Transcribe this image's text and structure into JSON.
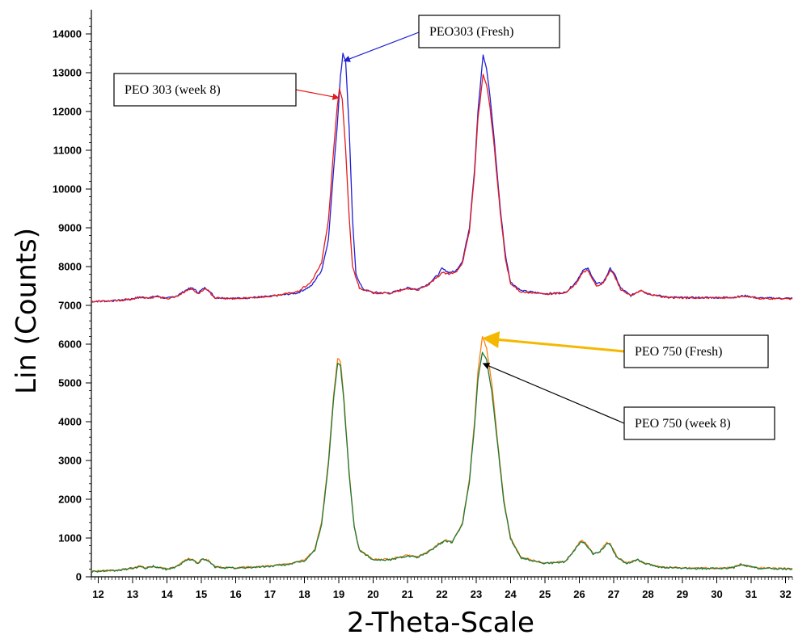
{
  "chart_data": {
    "type": "line",
    "xlabel": "2-Theta-Scale",
    "ylabel": "Lin (Counts)",
    "xlim": [
      11.8,
      32.2
    ],
    "ylim": [
      0,
      14500
    ],
    "xticks": [
      12,
      13,
      14,
      15,
      16,
      17,
      18,
      19,
      20,
      21,
      22,
      23,
      24,
      25,
      26,
      27,
      28,
      29,
      30,
      31,
      32
    ],
    "yticks": [
      0,
      1000,
      2000,
      3000,
      4000,
      5000,
      6000,
      7000,
      8000,
      9000,
      10000,
      11000,
      12000,
      13000,
      14000
    ],
    "grid": false,
    "legend": "none",
    "series": [
      {
        "name": "PEO303 (Fresh)",
        "color": "#1f1fd6",
        "baseline": 7100,
        "points": [
          [
            11.8,
            7100
          ],
          [
            12.5,
            7120
          ],
          [
            13,
            7170
          ],
          [
            13.2,
            7210
          ],
          [
            13.5,
            7200
          ],
          [
            13.7,
            7240
          ],
          [
            14,
            7180
          ],
          [
            14.3,
            7250
          ],
          [
            14.6,
            7420
          ],
          [
            14.75,
            7450
          ],
          [
            14.9,
            7330
          ],
          [
            15.1,
            7450
          ],
          [
            15.2,
            7400
          ],
          [
            15.4,
            7200
          ],
          [
            16,
            7180
          ],
          [
            17,
            7230
          ],
          [
            17.8,
            7320
          ],
          [
            18.2,
            7500
          ],
          [
            18.5,
            7900
          ],
          [
            18.7,
            8700
          ],
          [
            18.85,
            10500
          ],
          [
            18.95,
            11600
          ],
          [
            19.05,
            12900
          ],
          [
            19.12,
            13500
          ],
          [
            19.2,
            13300
          ],
          [
            19.3,
            11600
          ],
          [
            19.4,
            9200
          ],
          [
            19.5,
            7800
          ],
          [
            19.7,
            7420
          ],
          [
            20,
            7330
          ],
          [
            20.5,
            7320
          ],
          [
            21,
            7450
          ],
          [
            21.3,
            7420
          ],
          [
            21.6,
            7550
          ],
          [
            21.9,
            7800
          ],
          [
            22,
            7950
          ],
          [
            22.2,
            7850
          ],
          [
            22.4,
            7880
          ],
          [
            22.6,
            8150
          ],
          [
            22.8,
            9000
          ],
          [
            22.95,
            10500
          ],
          [
            23.05,
            12000
          ],
          [
            23.2,
            13450
          ],
          [
            23.3,
            13100
          ],
          [
            23.4,
            12400
          ],
          [
            23.5,
            11500
          ],
          [
            23.7,
            9500
          ],
          [
            23.85,
            8300
          ],
          [
            24,
            7600
          ],
          [
            24.3,
            7380
          ],
          [
            25,
            7300
          ],
          [
            25.6,
            7330
          ],
          [
            25.9,
            7600
          ],
          [
            26.1,
            7900
          ],
          [
            26.25,
            7950
          ],
          [
            26.5,
            7550
          ],
          [
            26.7,
            7600
          ],
          [
            26.9,
            7950
          ],
          [
            27.0,
            7850
          ],
          [
            27.2,
            7450
          ],
          [
            27.5,
            7250
          ],
          [
            27.8,
            7400
          ],
          [
            28,
            7300
          ],
          [
            28.5,
            7220
          ],
          [
            29,
            7200
          ],
          [
            30,
            7200
          ],
          [
            30.5,
            7210
          ],
          [
            30.8,
            7250
          ],
          [
            31.2,
            7190
          ],
          [
            32.2,
            7180
          ]
        ]
      },
      {
        "name": "PEO 303 (week 8)",
        "color": "#e41a1c",
        "baseline": 7100,
        "points": [
          [
            11.8,
            7100
          ],
          [
            12.5,
            7120
          ],
          [
            13,
            7160
          ],
          [
            13.2,
            7200
          ],
          [
            13.5,
            7190
          ],
          [
            13.7,
            7230
          ],
          [
            14,
            7170
          ],
          [
            14.3,
            7240
          ],
          [
            14.6,
            7400
          ],
          [
            14.75,
            7420
          ],
          [
            14.9,
            7300
          ],
          [
            15.1,
            7420
          ],
          [
            15.2,
            7380
          ],
          [
            15.4,
            7190
          ],
          [
            16,
            7170
          ],
          [
            17,
            7230
          ],
          [
            17.8,
            7350
          ],
          [
            18.2,
            7600
          ],
          [
            18.5,
            8100
          ],
          [
            18.7,
            9200
          ],
          [
            18.85,
            11000
          ],
          [
            18.95,
            12100
          ],
          [
            19.02,
            12600
          ],
          [
            19.1,
            12300
          ],
          [
            19.2,
            11000
          ],
          [
            19.3,
            9300
          ],
          [
            19.4,
            8000
          ],
          [
            19.6,
            7450
          ],
          [
            20,
            7320
          ],
          [
            20.5,
            7310
          ],
          [
            21,
            7430
          ],
          [
            21.3,
            7400
          ],
          [
            21.6,
            7520
          ],
          [
            21.9,
            7750
          ],
          [
            22,
            7850
          ],
          [
            22.2,
            7800
          ],
          [
            22.4,
            7850
          ],
          [
            22.6,
            8100
          ],
          [
            22.8,
            8900
          ],
          [
            22.95,
            10400
          ],
          [
            23.05,
            11800
          ],
          [
            23.2,
            12950
          ],
          [
            23.3,
            12700
          ],
          [
            23.4,
            12100
          ],
          [
            23.5,
            11300
          ],
          [
            23.7,
            9400
          ],
          [
            23.85,
            8200
          ],
          [
            24,
            7550
          ],
          [
            24.3,
            7350
          ],
          [
            25,
            7290
          ],
          [
            25.6,
            7320
          ],
          [
            25.9,
            7550
          ],
          [
            26.1,
            7850
          ],
          [
            26.25,
            7900
          ],
          [
            26.5,
            7500
          ],
          [
            26.7,
            7570
          ],
          [
            26.9,
            7900
          ],
          [
            27.0,
            7800
          ],
          [
            27.2,
            7420
          ],
          [
            27.5,
            7240
          ],
          [
            27.8,
            7380
          ],
          [
            28,
            7290
          ],
          [
            28.5,
            7210
          ],
          [
            29,
            7190
          ],
          [
            30,
            7190
          ],
          [
            30.5,
            7200
          ],
          [
            30.8,
            7240
          ],
          [
            31.2,
            7180
          ],
          [
            32.2,
            7170
          ]
        ]
      },
      {
        "name": "PEO 750 (Fresh)",
        "color": "#ff7f0e",
        "baseline": 150,
        "points": [
          [
            11.8,
            150
          ],
          [
            12.5,
            160
          ],
          [
            13,
            230
          ],
          [
            13.2,
            270
          ],
          [
            13.4,
            230
          ],
          [
            13.6,
            280
          ],
          [
            14,
            200
          ],
          [
            14.3,
            280
          ],
          [
            14.6,
            470
          ],
          [
            14.75,
            450
          ],
          [
            14.9,
            350
          ],
          [
            15,
            470
          ],
          [
            15.2,
            430
          ],
          [
            15.4,
            260
          ],
          [
            16,
            230
          ],
          [
            17,
            280
          ],
          [
            17.5,
            330
          ],
          [
            18,
            430
          ],
          [
            18.3,
            700
          ],
          [
            18.5,
            1400
          ],
          [
            18.7,
            3000
          ],
          [
            18.85,
            4700
          ],
          [
            18.97,
            5650
          ],
          [
            19.05,
            5550
          ],
          [
            19.15,
            4600
          ],
          [
            19.3,
            2700
          ],
          [
            19.45,
            1300
          ],
          [
            19.6,
            700
          ],
          [
            20,
            450
          ],
          [
            20.5,
            450
          ],
          [
            21,
            560
          ],
          [
            21.3,
            520
          ],
          [
            21.6,
            650
          ],
          [
            21.9,
            850
          ],
          [
            22.1,
            950
          ],
          [
            22.3,
            900
          ],
          [
            22.6,
            1400
          ],
          [
            22.8,
            2500
          ],
          [
            22.95,
            4000
          ],
          [
            23.05,
            5300
          ],
          [
            23.18,
            6200
          ],
          [
            23.3,
            5900
          ],
          [
            23.45,
            5000
          ],
          [
            23.6,
            3700
          ],
          [
            23.8,
            2000
          ],
          [
            24,
            1000
          ],
          [
            24.3,
            500
          ],
          [
            25,
            350
          ],
          [
            25.6,
            400
          ],
          [
            25.9,
            750
          ],
          [
            26.05,
            950
          ],
          [
            26.2,
            850
          ],
          [
            26.4,
            600
          ],
          [
            26.6,
            650
          ],
          [
            26.8,
            900
          ],
          [
            26.9,
            850
          ],
          [
            27.1,
            500
          ],
          [
            27.4,
            350
          ],
          [
            27.7,
            450
          ],
          [
            27.9,
            350
          ],
          [
            28.4,
            250
          ],
          [
            29,
            230
          ],
          [
            30,
            220
          ],
          [
            30.5,
            250
          ],
          [
            30.7,
            320
          ],
          [
            31.2,
            230
          ],
          [
            32.2,
            210
          ]
        ]
      },
      {
        "name": "PEO 750 (week 8)",
        "color": "#1a7a3a",
        "baseline": 140,
        "points": [
          [
            11.8,
            140
          ],
          [
            12.5,
            155
          ],
          [
            13,
            220
          ],
          [
            13.2,
            260
          ],
          [
            13.4,
            220
          ],
          [
            13.6,
            270
          ],
          [
            14,
            190
          ],
          [
            14.3,
            270
          ],
          [
            14.6,
            450
          ],
          [
            14.75,
            430
          ],
          [
            14.9,
            340
          ],
          [
            15,
            450
          ],
          [
            15.2,
            410
          ],
          [
            15.4,
            250
          ],
          [
            16,
            220
          ],
          [
            17,
            270
          ],
          [
            17.5,
            320
          ],
          [
            18,
            410
          ],
          [
            18.3,
            680
          ],
          [
            18.5,
            1350
          ],
          [
            18.7,
            2900
          ],
          [
            18.85,
            4600
          ],
          [
            18.97,
            5500
          ],
          [
            19.05,
            5450
          ],
          [
            19.15,
            4500
          ],
          [
            19.3,
            2650
          ],
          [
            19.45,
            1280
          ],
          [
            19.6,
            680
          ],
          [
            20,
            440
          ],
          [
            20.5,
            440
          ],
          [
            21,
            540
          ],
          [
            21.3,
            500
          ],
          [
            21.6,
            630
          ],
          [
            21.9,
            830
          ],
          [
            22.1,
            930
          ],
          [
            22.3,
            880
          ],
          [
            22.6,
            1380
          ],
          [
            22.8,
            2450
          ],
          [
            22.95,
            3900
          ],
          [
            23.05,
            5100
          ],
          [
            23.18,
            5800
          ],
          [
            23.3,
            5600
          ],
          [
            23.45,
            4800
          ],
          [
            23.6,
            3600
          ],
          [
            23.8,
            1950
          ],
          [
            24,
            980
          ],
          [
            24.3,
            490
          ],
          [
            25,
            340
          ],
          [
            25.6,
            390
          ],
          [
            25.9,
            730
          ],
          [
            26.05,
            920
          ],
          [
            26.2,
            830
          ],
          [
            26.4,
            590
          ],
          [
            26.6,
            640
          ],
          [
            26.8,
            870
          ],
          [
            26.9,
            830
          ],
          [
            27.1,
            490
          ],
          [
            27.4,
            340
          ],
          [
            27.7,
            440
          ],
          [
            27.9,
            340
          ],
          [
            28.4,
            240
          ],
          [
            29,
            220
          ],
          [
            30,
            210
          ],
          [
            30.5,
            240
          ],
          [
            30.7,
            310
          ],
          [
            31.2,
            220
          ],
          [
            32.2,
            200
          ]
        ]
      }
    ],
    "annotations": [
      {
        "text": "PEO303 (Fresh)",
        "color": "#1f1fd6",
        "target": [
          19.15,
          13300
        ]
      },
      {
        "text": "PEO 303 (week 8)",
        "color": "#e41a1c",
        "target": [
          19.0,
          12350
        ]
      },
      {
        "text": "PEO 750 (Fresh)",
        "color": "#f5b800",
        "target": [
          23.22,
          6150
        ]
      },
      {
        "text": "PEO 750 (week 8)",
        "color": "#000000",
        "target": [
          23.2,
          5500
        ]
      }
    ]
  }
}
